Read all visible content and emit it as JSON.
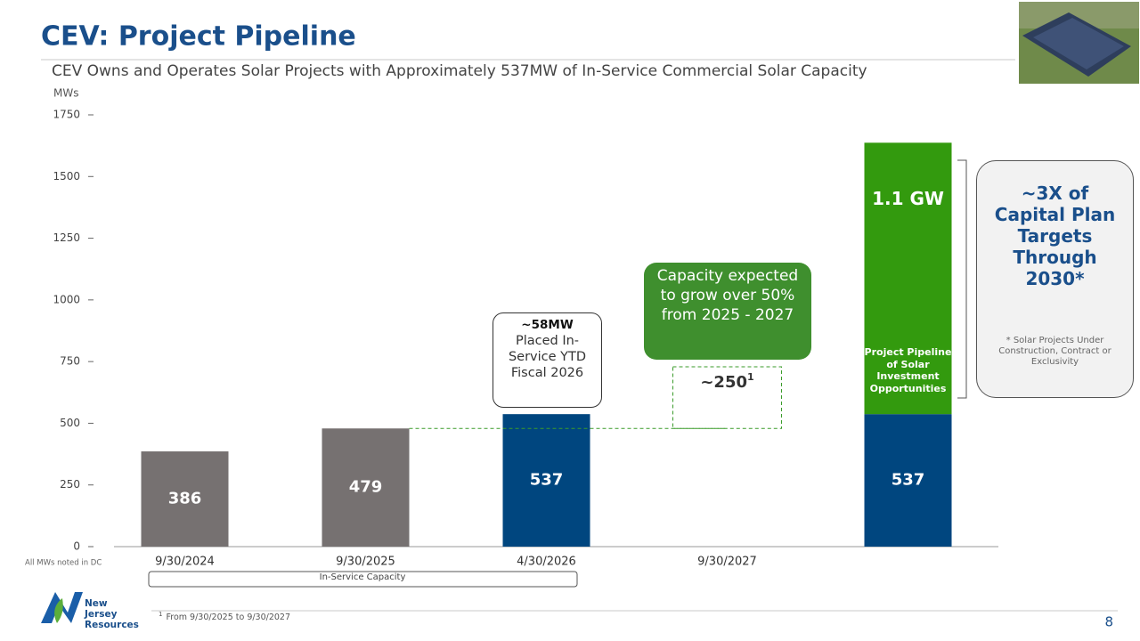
{
  "header": {
    "title": "CEV: Project Pipeline",
    "subtitle": "CEV Owns and Operates Solar Projects with Approximately 537MW of In-Service Commercial Solar Capacity"
  },
  "chart_data": {
    "type": "stacked_bar",
    "y_label": "MWs",
    "note": "All MWs noted in DC",
    "group_label": "In-Service Capacity",
    "categories": [
      "9/30/2024",
      "9/30/2025",
      "4/30/2026",
      "9/30/2027",
      null
    ],
    "series": [
      {
        "colors": [
          "#767171",
          "#767171",
          "#00467f",
          null,
          "#00467f"
        ],
        "values": [
          386,
          479,
          537,
          null,
          537
        ]
      },
      {
        "color": "#339a0e",
        "values": [
          null,
          null,
          null,
          null,
          1100
        ],
        "value_labels": [
          null,
          null,
          null,
          null,
          "1.1 GW"
        ],
        "segment_label": "Project Pipeline of Solar Investment Opportunities"
      }
    ],
    "growth": {
      "value": 250,
      "base": 479,
      "label": "~250",
      "footnote_mark": "1",
      "color": "#3a9b2a"
    },
    "ylim": [
      0,
      1750
    ],
    "yticks": [
      0,
      250,
      500,
      750,
      1000,
      1250,
      1500,
      1750
    ]
  },
  "callouts": {
    "placed": {
      "headline": "~58MW",
      "text": "Placed In-Service YTD Fiscal 2026"
    },
    "growth": "Capacity expected to grow over 50% from 2025 - 2027",
    "target": {
      "headline": "~3X of Capital Plan Targets Through 2030*",
      "note": "* Solar Projects Under Construction, Contract or Exclusivity"
    }
  },
  "footnote": {
    "mark": "1",
    "text": "From 9/30/2025 to 9/30/2027"
  },
  "logo": "New Jersey Resources",
  "page_number": 8
}
